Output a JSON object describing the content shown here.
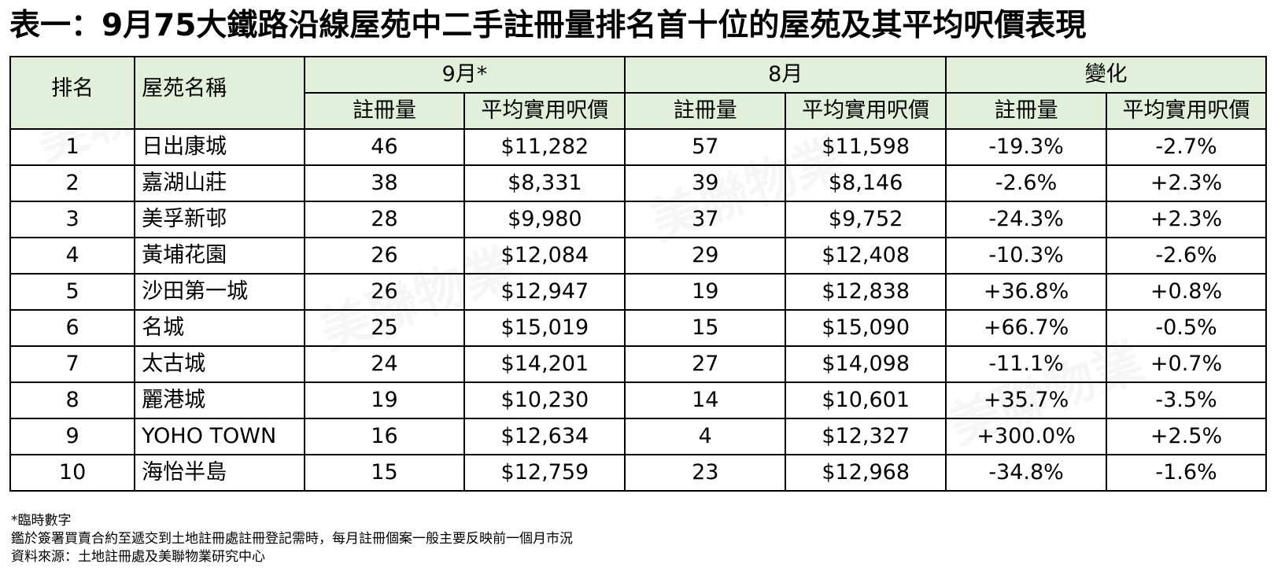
{
  "title": "表一：9月75大鐵路沿線屋苑中二手註冊量排名首十位的屋苑及其平均呎價表現",
  "headers": {
    "rank": "排名",
    "estate": "屋苑名稱",
    "sep": "9月*",
    "aug": "8月",
    "change": "變化",
    "reg": "註冊量",
    "price": "平均實用呎價"
  },
  "rows": [
    {
      "rank": "1",
      "estate": "日出康城",
      "sep_reg": "46",
      "sep_price": "$11,282",
      "aug_reg": "57",
      "aug_price": "$11,598",
      "chg_reg": "-19.3%",
      "chg_price": "-2.7%"
    },
    {
      "rank": "2",
      "estate": "嘉湖山莊",
      "sep_reg": "38",
      "sep_price": "$8,331",
      "aug_reg": "39",
      "aug_price": "$8,146",
      "chg_reg": "-2.6%",
      "chg_price": "+2.3%"
    },
    {
      "rank": "3",
      "estate": "美孚新邨",
      "sep_reg": "28",
      "sep_price": "$9,980",
      "aug_reg": "37",
      "aug_price": "$9,752",
      "chg_reg": "-24.3%",
      "chg_price": "+2.3%"
    },
    {
      "rank": "4",
      "estate": "黃埔花園",
      "sep_reg": "26",
      "sep_price": "$12,084",
      "aug_reg": "29",
      "aug_price": "$12,408",
      "chg_reg": "-10.3%",
      "chg_price": "-2.6%"
    },
    {
      "rank": "5",
      "estate": "沙田第一城",
      "sep_reg": "26",
      "sep_price": "$12,947",
      "aug_reg": "19",
      "aug_price": "$12,838",
      "chg_reg": "+36.8%",
      "chg_price": "+0.8%"
    },
    {
      "rank": "6",
      "estate": "名城",
      "sep_reg": "25",
      "sep_price": "$15,019",
      "aug_reg": "15",
      "aug_price": "$15,090",
      "chg_reg": "+66.7%",
      "chg_price": "-0.5%"
    },
    {
      "rank": "7",
      "estate": "太古城",
      "sep_reg": "24",
      "sep_price": "$14,201",
      "aug_reg": "27",
      "aug_price": "$14,098",
      "chg_reg": "-11.1%",
      "chg_price": "+0.7%"
    },
    {
      "rank": "8",
      "estate": "麗港城",
      "sep_reg": "19",
      "sep_price": "$10,230",
      "aug_reg": "14",
      "aug_price": "$10,601",
      "chg_reg": "+35.7%",
      "chg_price": "-3.5%"
    },
    {
      "rank": "9",
      "estate": "YOHO TOWN",
      "sep_reg": "16",
      "sep_price": "$12,634",
      "aug_reg": "4",
      "aug_price": "$12,327",
      "chg_reg": "+300.0%",
      "chg_price": "+2.5%"
    },
    {
      "rank": "10",
      "estate": "海怡半島",
      "sep_reg": "15",
      "sep_price": "$12,759",
      "aug_reg": "23",
      "aug_price": "$12,968",
      "chg_reg": "-34.8%",
      "chg_price": "-1.6%"
    }
  ],
  "notes": [
    "*臨時數字",
    "鑑於簽署買賣合約至遞交到土地註冊處註冊登記需時，每月註冊個案一般主要反映前一個月市況",
    "資料來源：土地註冊處及美聯物業研究中心"
  ],
  "watermark_text": "美聯物業",
  "colors": {
    "header_bg": "#e2efda",
    "border": "#000000"
  }
}
